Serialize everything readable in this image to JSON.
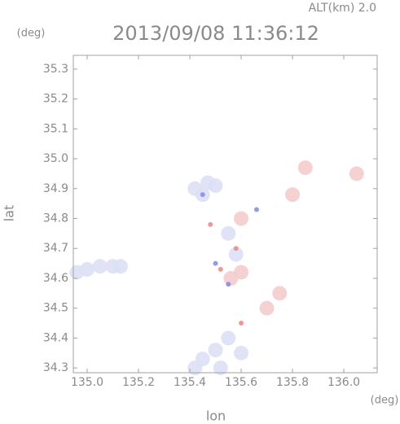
{
  "chart_data": {
    "type": "scatter",
    "title": "2013/09/08 11:36:12",
    "subtitle": "ALT(km) 2.0",
    "y_unit": "(deg)",
    "x_unit": "(deg)",
    "y_label": "lat",
    "x_label": "lon",
    "xlim": [
      134.946,
      136.13
    ],
    "ylim": [
      34.284,
      35.346
    ],
    "xticks": [
      {
        "value": 135,
        "label": "135.0"
      },
      135.2,
      135.4,
      135.6,
      135.8,
      {
        "value": 136,
        "label": "136.0"
      }
    ],
    "yticks": [
      34.3,
      34.4,
      34.5,
      34.6,
      34.7,
      34.8,
      34.9,
      {
        "value": 35,
        "label": "35.0"
      },
      35.1,
      35.2,
      35.3
    ],
    "series": [
      {
        "color": "#dde0f5",
        "x": [
          134.96,
          135.0,
          135.05,
          135.1,
          135.13,
          135.42,
          135.47,
          135.5,
          135.45,
          135.42,
          135.45,
          135.5,
          135.55,
          135.6,
          135.52,
          135.55,
          135.58
        ],
        "y": [
          34.62,
          34.63,
          34.64,
          34.64,
          34.64,
          34.9,
          34.92,
          34.91,
          34.88,
          34.3,
          34.33,
          34.36,
          34.4,
          34.35,
          34.3,
          34.75,
          34.68
        ]
      },
      {
        "color": "#f5cccc",
        "x": [
          135.85,
          135.8,
          136.05,
          135.6,
          135.56,
          135.7,
          135.75,
          135.6
        ],
        "y": [
          34.97,
          34.88,
          34.95,
          34.62,
          34.6,
          34.5,
          34.55,
          34.8
        ]
      },
      {
        "color": "#8a8ee8",
        "x": [
          135.5,
          135.66,
          135.45,
          135.55
        ],
        "y": [
          34.65,
          34.83,
          34.88,
          34.58
        ]
      },
      {
        "color": "#ee8c8c",
        "x": [
          135.52,
          135.6,
          135.58,
          135.48
        ],
        "y": [
          34.63,
          34.45,
          34.7,
          34.78
        ]
      }
    ]
  }
}
